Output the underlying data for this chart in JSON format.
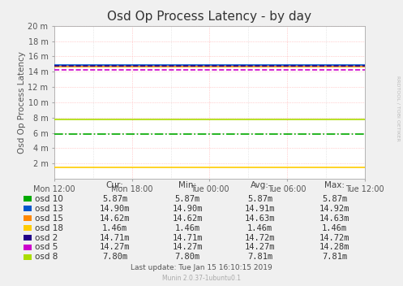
{
  "title": "Osd Op Process Latency - by day",
  "ylabel": "Osd Op Process Latency",
  "right_label": "RRDTOOL / TOBI OETIKER",
  "background_color": "#f0f0f0",
  "plot_bg_color": "#ffffff",
  "grid_color_major": "#ffaaaa",
  "grid_color_minor": "#cccccc",
  "ylim": [
    0,
    20
  ],
  "yticks": [
    2,
    4,
    6,
    8,
    10,
    12,
    14,
    16,
    18,
    20
  ],
  "ytick_labels": [
    "2 m",
    "4 m",
    "6 m",
    "8 m",
    "10 m",
    "12 m",
    "14 m",
    "16 m",
    "18 m",
    "20 m"
  ],
  "xtick_labels": [
    "Mon 12:00",
    "Mon 18:00",
    "Tue 00:00",
    "Tue 06:00",
    "Tue 12:00"
  ],
  "xtick_positions": [
    0.0,
    0.25,
    0.5,
    0.75,
    1.0
  ],
  "series": [
    {
      "name": "osd 10",
      "color": "#00aa00",
      "value": 5.87,
      "linestyle": "dashdot"
    },
    {
      "name": "osd 13",
      "color": "#0055cc",
      "value": 14.9,
      "linestyle": "solid"
    },
    {
      "name": "osd 15",
      "color": "#ff8800",
      "value": 14.62,
      "linestyle": "solid"
    },
    {
      "name": "osd 18",
      "color": "#ffcc00",
      "value": 1.46,
      "linestyle": "solid"
    },
    {
      "name": "osd 2",
      "color": "#220088",
      "value": 14.71,
      "linestyle": "dashed"
    },
    {
      "name": "osd 5",
      "color": "#cc00cc",
      "value": 14.27,
      "linestyle": "dashed"
    },
    {
      "name": "osd 8",
      "color": "#aadd00",
      "value": 7.8,
      "linestyle": "solid"
    }
  ],
  "legend_data": [
    {
      "name": "osd 10",
      "color": "#00aa00",
      "cur": "5.87m",
      "min": "5.87m",
      "avg": "5.87m",
      "max": "5.87m"
    },
    {
      "name": "osd 13",
      "color": "#0055cc",
      "cur": "14.90m",
      "min": "14.90m",
      "avg": "14.91m",
      "max": "14.92m"
    },
    {
      "name": "osd 15",
      "color": "#ff8800",
      "cur": "14.62m",
      "min": "14.62m",
      "avg": "14.63m",
      "max": "14.63m"
    },
    {
      "name": "osd 18",
      "color": "#ffcc00",
      "cur": "1.46m",
      "min": "1.46m",
      "avg": "1.46m",
      "max": "1.46m"
    },
    {
      "name": "osd 2",
      "color": "#220088",
      "cur": "14.71m",
      "min": "14.71m",
      "avg": "14.72m",
      "max": "14.72m"
    },
    {
      "name": "osd 5",
      "color": "#cc00cc",
      "cur": "14.27m",
      "min": "14.27m",
      "avg": "14.27m",
      "max": "14.28m"
    },
    {
      "name": "osd 8",
      "color": "#aadd00",
      "cur": "7.80m",
      "min": "7.80m",
      "avg": "7.81m",
      "max": "7.81m"
    }
  ],
  "footer_text": "Last update: Tue Jan 15 16:10:15 2019",
  "munin_text": "Munin 2.0.37-1ubuntu0.1",
  "title_fontsize": 11,
  "axis_label_fontsize": 7.5,
  "tick_fontsize": 7,
  "legend_fontsize": 7.5
}
